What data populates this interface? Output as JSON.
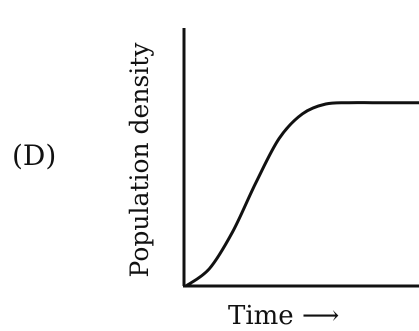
{
  "panel_label": "(D)",
  "chart_data": {
    "type": "line",
    "title": "",
    "xlabel": "Time ⟶",
    "ylabel": "Population density",
    "xlim": [
      0,
      1
    ],
    "ylim": [
      0,
      1
    ],
    "grid": false,
    "legend": "none",
    "series": [
      {
        "x": [
          0,
          0.1,
          0.2,
          0.3,
          0.4,
          0.5,
          0.6,
          0.7,
          0.8,
          0.9,
          1.0
        ],
        "y": [
          0.0,
          0.07,
          0.22,
          0.42,
          0.6,
          0.7,
          0.74,
          0.745,
          0.745,
          0.745,
          0.745
        ]
      }
    ],
    "line_color": "#111111"
  }
}
